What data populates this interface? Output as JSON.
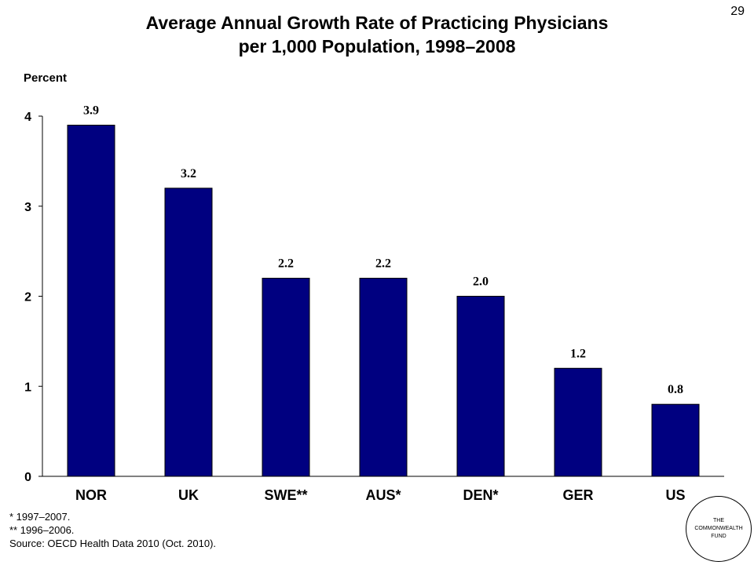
{
  "slide_number": "29",
  "chart_data": {
    "type": "bar",
    "title": "Average Annual Growth Rate of Practicing Physicians",
    "subtitle": "per 1,000 Population, 1998–2008",
    "ylabel": "Percent",
    "categories": [
      "NOR",
      "UK",
      "SWE**",
      "AUS*",
      "DEN*",
      "GER",
      "US"
    ],
    "values": [
      3.9,
      3.2,
      2.2,
      2.2,
      2.0,
      1.2,
      0.8
    ],
    "value_labels": [
      "3.9",
      "3.2",
      "2.2",
      "2.2",
      "2.0",
      "1.2",
      "0.8"
    ],
    "yticks": [
      "0",
      "1",
      "2",
      "3",
      "4"
    ],
    "ylim": [
      0,
      4
    ],
    "grid": false,
    "legend": "none",
    "bar_color": "#000080"
  },
  "footnotes": {
    "note1": "* 1997–2007.",
    "note2": "** 1996–2006.",
    "source": "Source: OECD Health Data 2010 (Oct. 2010)."
  },
  "logo": {
    "line1": "THE",
    "line2": "COMMONWEALTH",
    "line3": "FUND"
  }
}
